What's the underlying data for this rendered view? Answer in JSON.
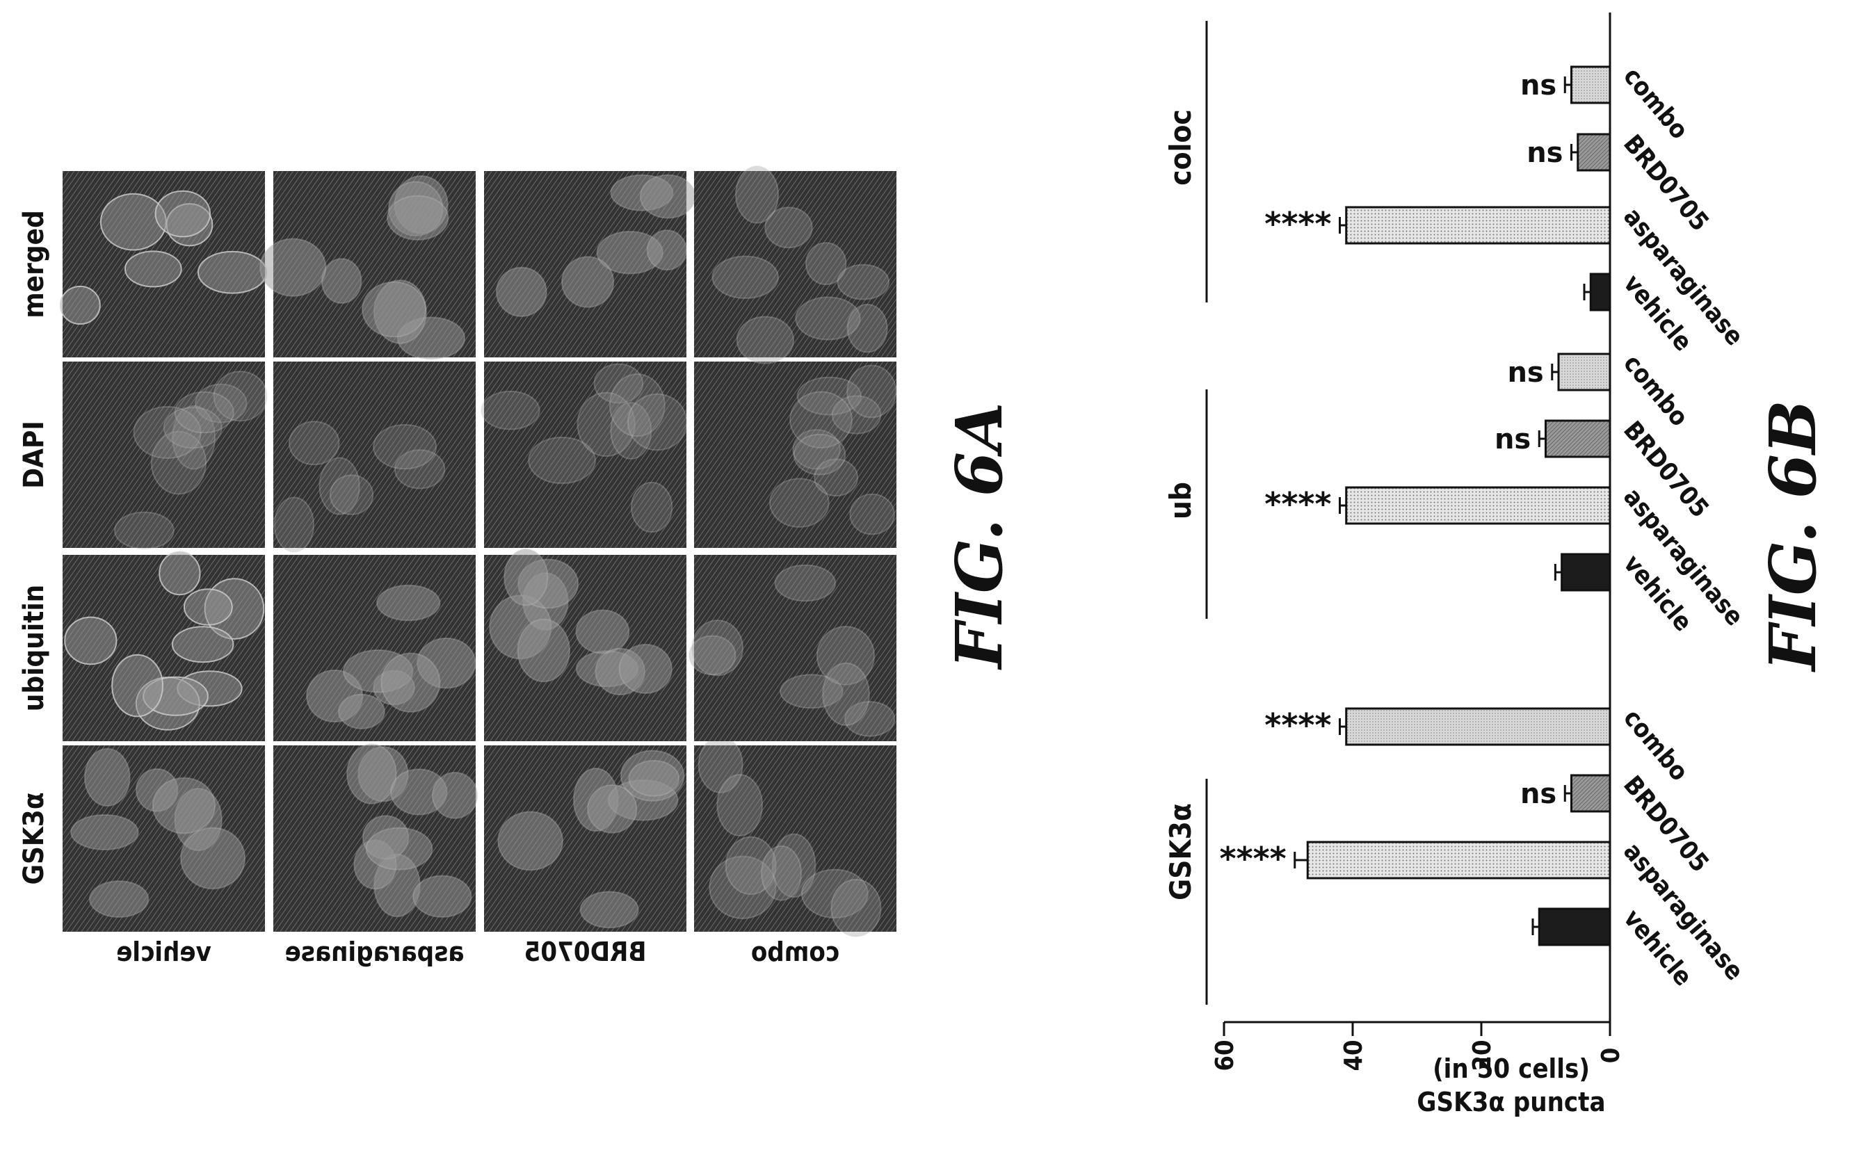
{
  "figure_a": {
    "label": "FIG. 6A",
    "row_labels": [
      "vehicle",
      "asparaginase",
      "BRD0705",
      "combo"
    ],
    "column_labels": [
      "GSK3α",
      "ubiquitin",
      "DAPI",
      "merged"
    ]
  },
  "figure_b": {
    "label": "FIG. 6B"
  },
  "chart_data": {
    "type": "bar",
    "orientation": "rotated-90-counterclockwise",
    "ylabel_line1": "GSK3α puncta",
    "ylabel_line2": "(in 50 cells)",
    "ylim": [
      0,
      60
    ],
    "yticks": [
      0,
      20,
      40,
      60
    ],
    "categories": [
      "vehicle",
      "asparaginase",
      "BRD0705",
      "combo"
    ],
    "groups": [
      {
        "name": "GSK3α",
        "values": [
          11,
          47,
          6,
          41
        ],
        "errors": [
          1,
          2,
          1,
          1
        ],
        "significance": [
          "",
          "****",
          "ns",
          "****"
        ]
      },
      {
        "name": "ub",
        "values": [
          7.5,
          41,
          10,
          8
        ],
        "errors": [
          1,
          1,
          1,
          1
        ],
        "significance": [
          "",
          "****",
          "ns",
          "ns"
        ]
      },
      {
        "name": "coloc",
        "values": [
          3,
          41,
          5,
          6
        ],
        "errors": [
          1,
          1,
          1,
          1
        ],
        "significance": [
          "",
          "****",
          "ns",
          "ns"
        ]
      }
    ],
    "colors": [
      "#1c1c1c",
      "#d0d0d0",
      "#8c8c8c",
      "#c4c4c4"
    ],
    "grid": false,
    "legend": "none"
  }
}
